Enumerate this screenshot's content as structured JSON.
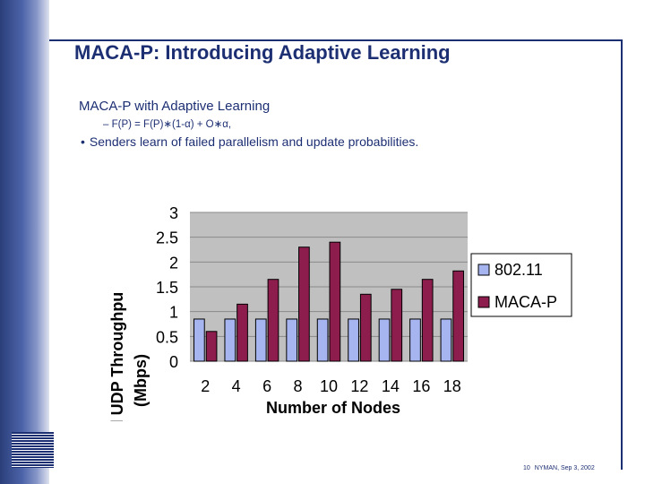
{
  "slide": {
    "title": "MACA-P: Introducing Adaptive Learning",
    "subtitle": "MACA-P with Adaptive Learning",
    "formula": "– F(P) = F(P)∗(1-α) + O∗α,",
    "bullet": "Senders learn of failed parallelism and update probabilities.",
    "bullet_symbol": "•",
    "footer": {
      "slide_number": "10",
      "author_date": "NYMAN, Sep 3, 2002"
    }
  },
  "colors": {
    "accent": "#1d2f73",
    "series1": "#a6b4f0",
    "series2": "#8c1d4c",
    "plot_bg": "#c0c0c0"
  },
  "chart_data": {
    "type": "bar",
    "categories": [
      "2",
      "4",
      "6",
      "8",
      "10",
      "12",
      "14",
      "16",
      "18"
    ],
    "series": [
      {
        "name": "802.11",
        "values": [
          0.85,
          0.85,
          0.85,
          0.85,
          0.85,
          0.85,
          0.85,
          0.85,
          0.85
        ]
      },
      {
        "name": "MACA-P",
        "values": [
          0.6,
          1.15,
          1.65,
          2.3,
          2.4,
          1.35,
          1.45,
          1.65,
          1.82
        ]
      }
    ],
    "title": "",
    "xlabel": "Number of Nodes",
    "ylabel": "Total UDP Throughpu (Mbps)",
    "ylim": [
      0,
      3
    ],
    "yticks": [
      "0",
      "0.5",
      "1",
      "1.5",
      "2",
      "2.5",
      "3"
    ],
    "legend": "right"
  }
}
